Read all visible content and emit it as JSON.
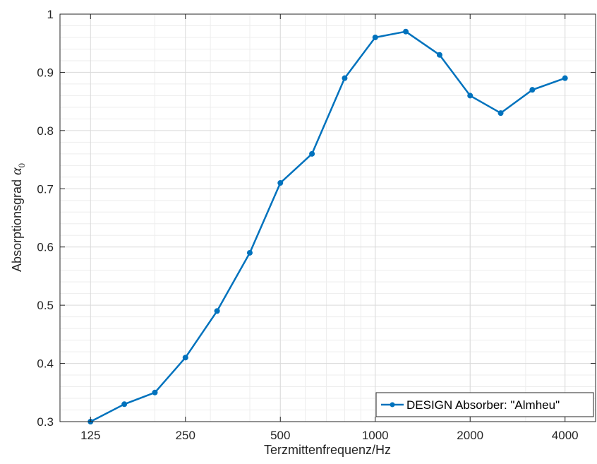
{
  "chart_data": {
    "type": "line",
    "title": "",
    "xlabel": "Terzmittenfrequenz/Hz",
    "ylabel": "Absorptionsgrad",
    "ylabel_symbol": "α",
    "ylabel_subscript": "0",
    "x": [
      125,
      160,
      200,
      250,
      315,
      400,
      500,
      630,
      800,
      1000,
      1250,
      1600,
      2000,
      2500,
      3150,
      4000
    ],
    "x_scale": "log",
    "xlim": [
      100,
      5000
    ],
    "x_ticks": [
      125,
      250,
      500,
      1000,
      2000,
      4000
    ],
    "x_tick_labels": [
      "125",
      "250",
      "500",
      "1000",
      "2000",
      "4000"
    ],
    "ylim": [
      0.3,
      1.0
    ],
    "y_ticks": [
      0.3,
      0.4,
      0.5,
      0.6,
      0.7,
      0.8,
      0.9,
      1.0
    ],
    "y_tick_labels": [
      "0.3",
      "0.4",
      "0.5",
      "0.6",
      "0.7",
      "0.8",
      "0.9",
      "1"
    ],
    "grid": true,
    "minor_grid": true,
    "legend_position": "bottom-right",
    "series": [
      {
        "name": "DESIGN Absorber: \"Almheu\"",
        "color": "#0072BD",
        "values": [
          0.3,
          0.33,
          0.35,
          0.41,
          0.49,
          0.59,
          0.71,
          0.76,
          0.89,
          0.96,
          0.97,
          0.93,
          0.86,
          0.83,
          0.87,
          0.89
        ]
      }
    ]
  }
}
